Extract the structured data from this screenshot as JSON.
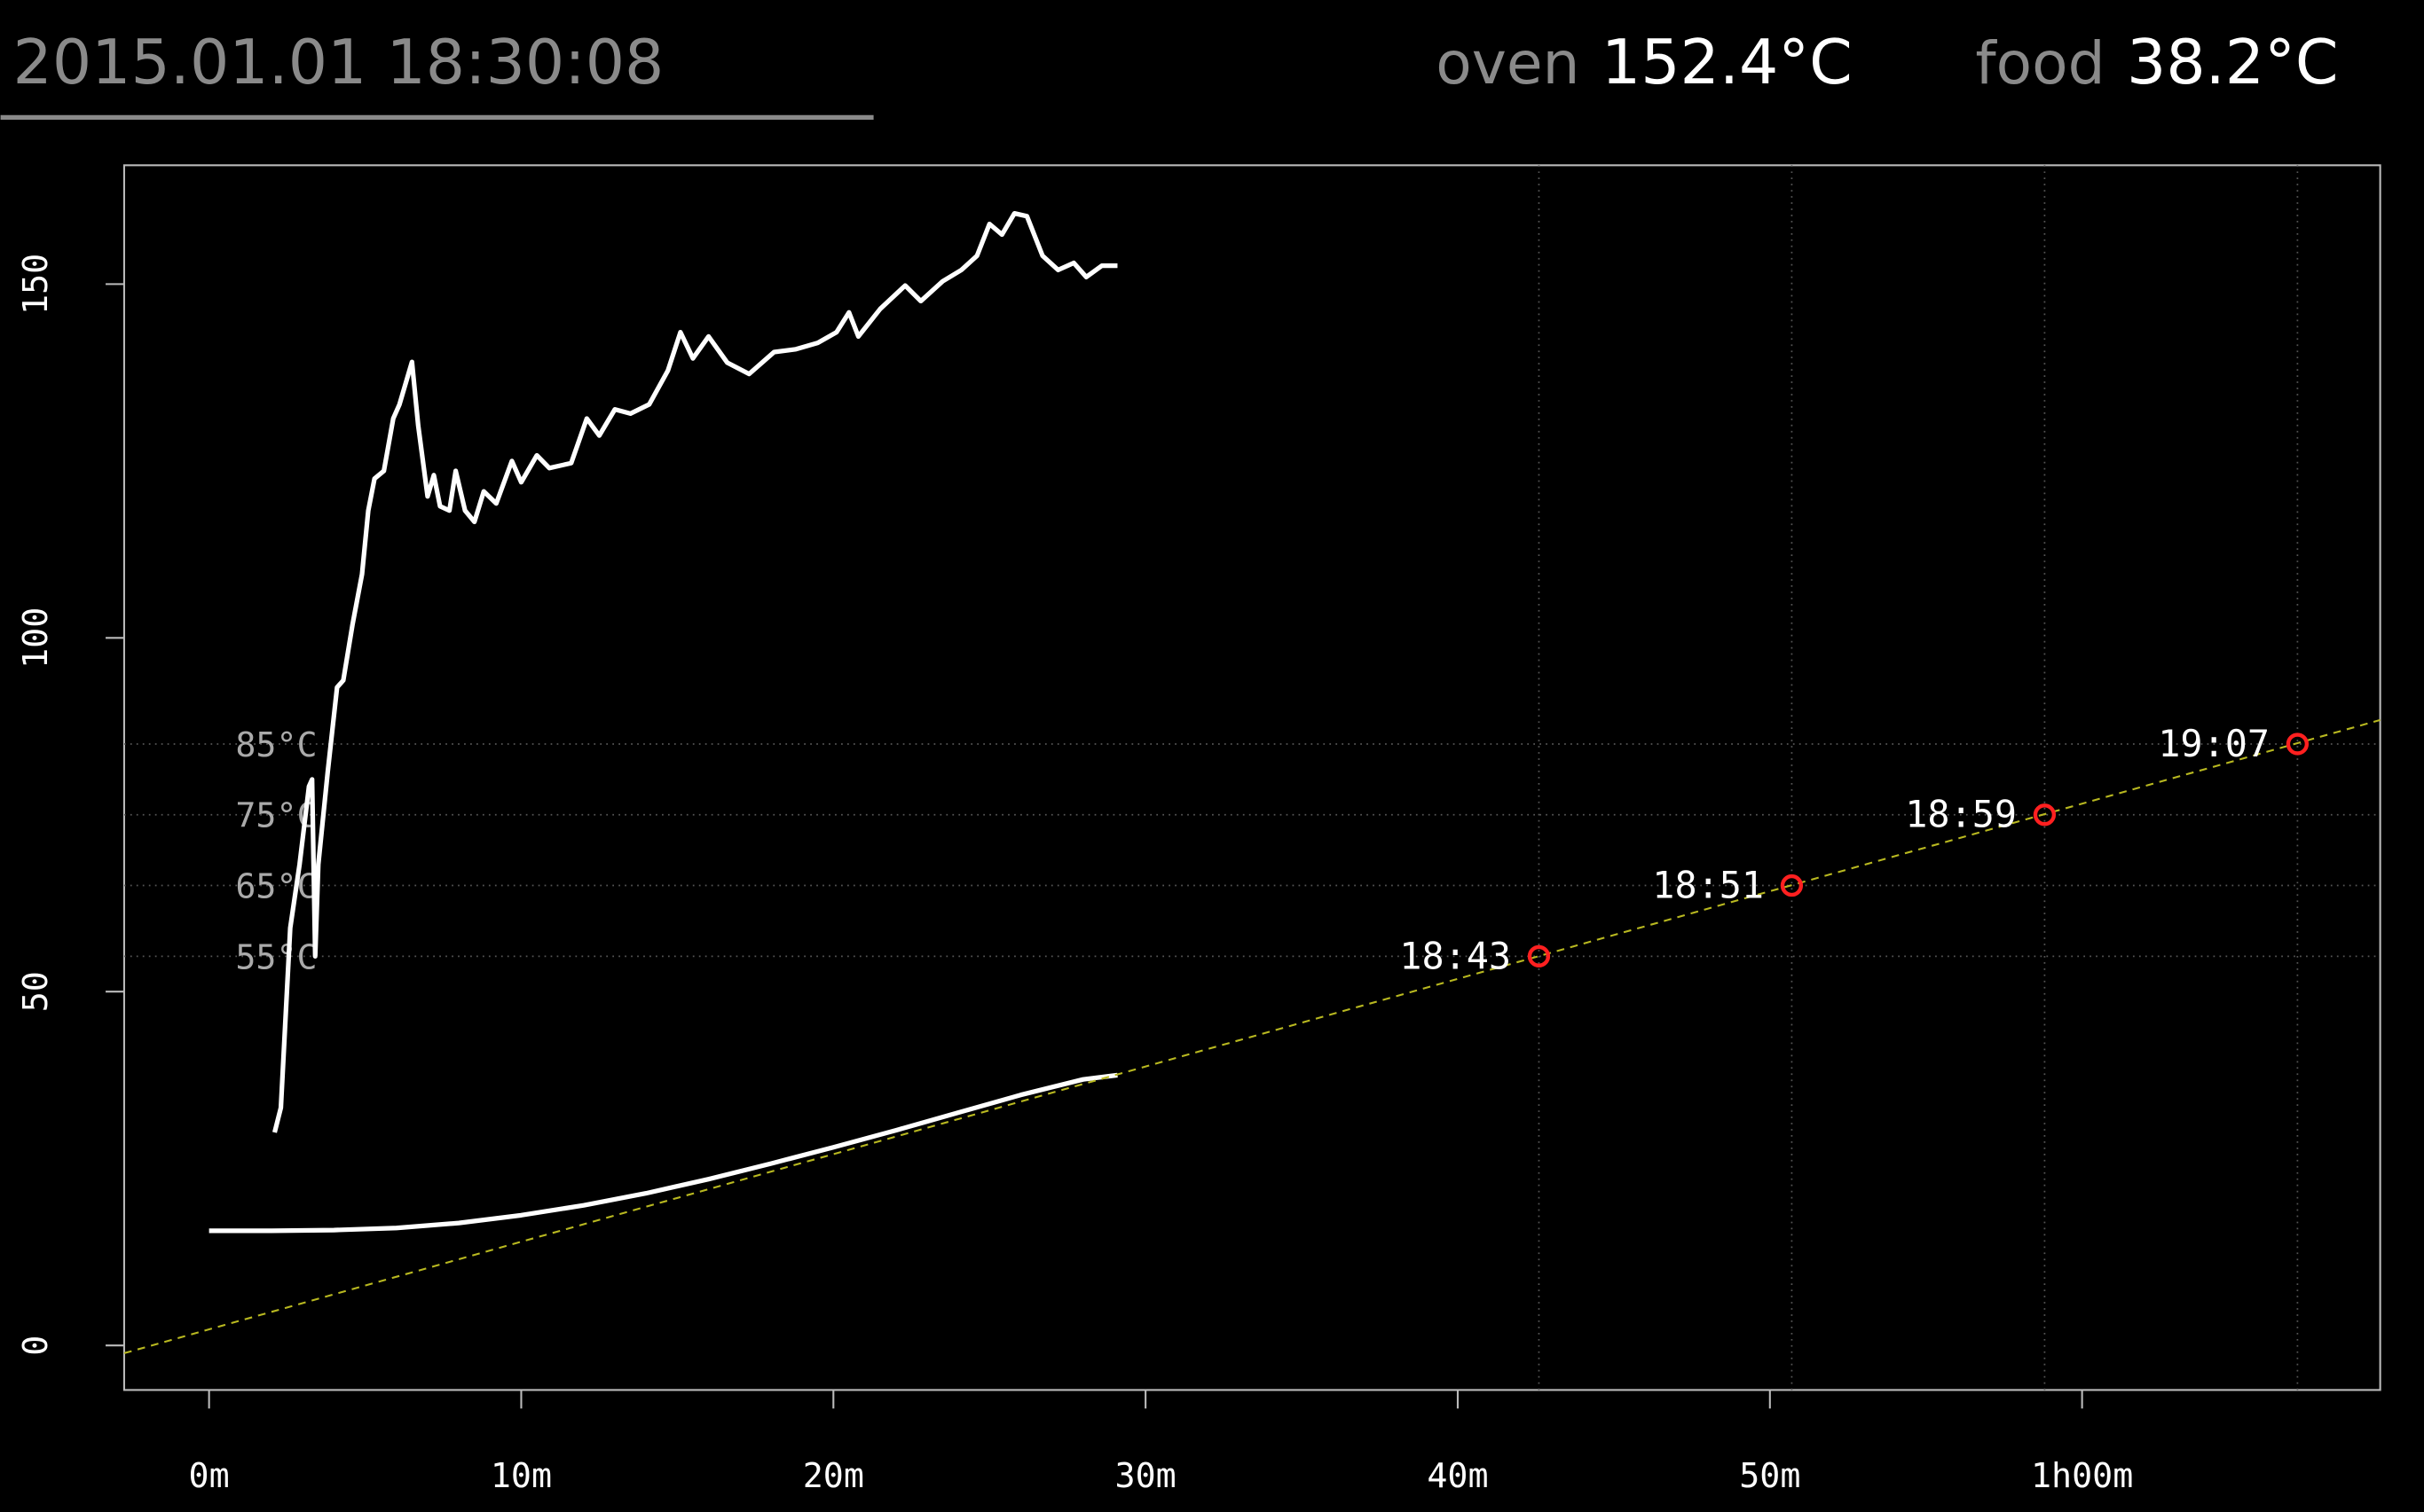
{
  "header": {
    "datetime": "2015.01.01 18:30:08",
    "oven_label": "oven",
    "oven_value": "152.4°C",
    "food_label": "food",
    "food_value": "38.2°C"
  },
  "chart_data": {
    "type": "line",
    "xlim": [
      -2.72,
      69.55
    ],
    "ylim": [
      -6.3,
      166.8
    ],
    "xticks": [
      {
        "value": 0,
        "label": "0m"
      },
      {
        "value": 10,
        "label": "10m"
      },
      {
        "value": 20,
        "label": "20m"
      },
      {
        "value": 30,
        "label": "30m"
      },
      {
        "value": 40,
        "label": "40m"
      },
      {
        "value": 50,
        "label": "50m"
      },
      {
        "value": 60,
        "label": "1h00m"
      }
    ],
    "yticks": [
      0,
      50,
      100,
      150
    ],
    "series": [
      {
        "color": "#ffffff",
        "dash": false,
        "x": [
          2.1,
          2.3,
          2.6,
          2.9,
          3.2,
          3.3,
          3.4,
          3.5,
          3.8,
          4.1,
          4.3,
          4.6,
          4.9,
          5.1,
          5.3,
          5.6,
          5.9,
          6.1,
          6.5,
          6.7,
          7.0,
          7.2,
          7.4,
          7.7,
          7.9,
          8.2,
          8.5,
          8.8,
          9.2,
          9.7,
          10.0,
          10.5,
          10.9,
          11.6,
          12.1,
          12.5,
          13.0,
          13.5,
          14.1,
          14.7,
          15.1,
          15.5,
          16.0,
          16.6,
          17.3,
          18.1,
          18.8,
          19.5,
          20.1,
          20.5,
          20.8,
          21.5,
          22.3,
          22.8,
          23.5,
          24.1,
          24.6,
          25.0,
          25.4,
          25.8,
          26.2,
          26.7,
          27.2,
          27.7,
          28.1,
          28.6,
          29.1
        ],
        "values": [
          30.1,
          33.6,
          59,
          68,
          79,
          80,
          55,
          68,
          81,
          93,
          94,
          102,
          109,
          118,
          122.5,
          123.6,
          131,
          133,
          139,
          130,
          120,
          123,
          118.6,
          118,
          123.6,
          118,
          116.4,
          120.7,
          119,
          125,
          122,
          125.8,
          124,
          124.7,
          131,
          128.6,
          132.3,
          131.7,
          133,
          137.8,
          143.2,
          139.5,
          142.6,
          138.9,
          137.3,
          140.4,
          140.8,
          141.7,
          143.2,
          146,
          142.6,
          146.5,
          149.8,
          147.6,
          150.4,
          152,
          154,
          158.5,
          157,
          160,
          159.6,
          154,
          152,
          153,
          151,
          152.6,
          152.6
        ]
      },
      {
        "color": "#ffffff",
        "dash": false,
        "x": [
          0,
          2,
          4,
          6,
          8,
          10,
          12,
          14,
          16,
          18,
          20,
          22,
          24,
          26,
          28,
          29.1
        ],
        "values": [
          16.2,
          16.2,
          16.3,
          16.6,
          17.3,
          18.4,
          19.8,
          21.5,
          23.5,
          25.7,
          28,
          30.4,
          32.9,
          35.4,
          37.6,
          38.2
        ]
      },
      {
        "color": "#b8b820",
        "dash": true,
        "x": [
          -2.72,
          69.55
        ],
        "values": [
          -1.1,
          88.4
        ]
      }
    ],
    "hlines": [
      {
        "value": 55,
        "label": "55°C"
      },
      {
        "value": 65,
        "label": "65°C"
      },
      {
        "value": 75,
        "label": "75°C"
      },
      {
        "value": 85,
        "label": "85°C"
      }
    ],
    "targets": {
      "color": "#ff2020",
      "x": [
        42.6,
        50.7,
        58.8,
        66.9
      ],
      "values": [
        55,
        65,
        75,
        85
      ],
      "labels": [
        "18:43",
        "18:51",
        "18:59",
        "19:07"
      ]
    }
  }
}
